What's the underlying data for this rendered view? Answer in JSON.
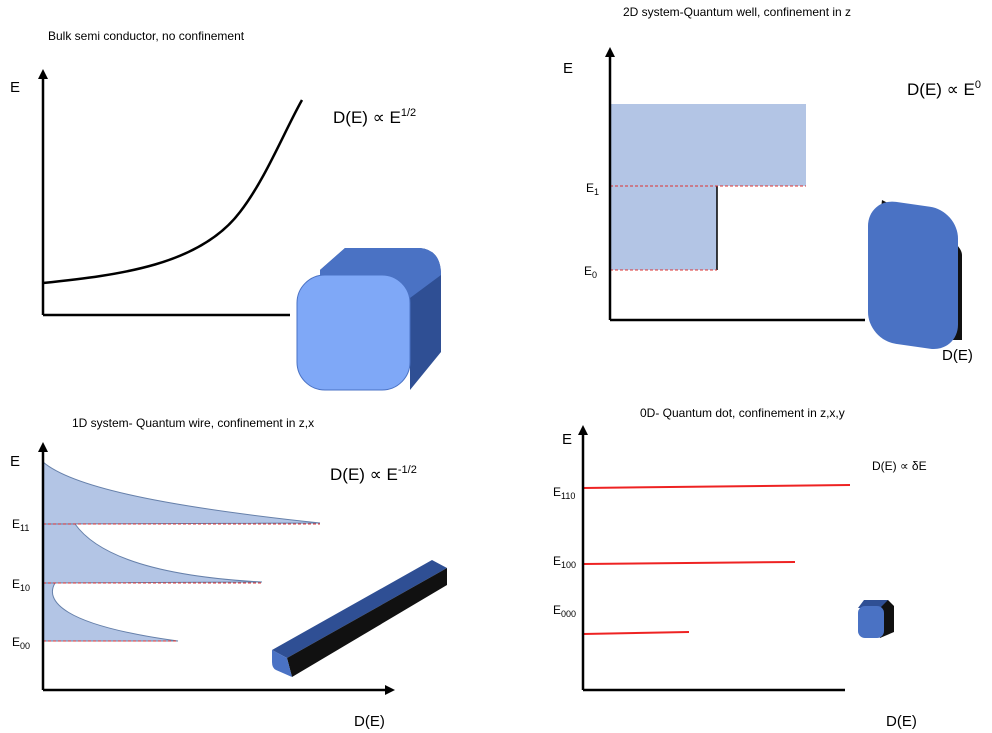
{
  "panels": [
    {
      "title": "Bulk semi conductor, no confinement",
      "y_axis": "E",
      "formula": {
        "text": "D(E) ∝ E",
        "sup": "1/2"
      }
    },
    {
      "title": "2D system-Quantum well, confinement in z",
      "y_axis": "E",
      "x_axis": "D(E)",
      "formula": {
        "text": "D(E) ∝ E",
        "sup": "0"
      },
      "levels": [
        {
          "text": "E",
          "sub": "1"
        },
        {
          "text": "E",
          "sub": "0"
        }
      ]
    },
    {
      "title": "1D system- Quantum wire, confinement in z,x",
      "y_axis": "E",
      "x_axis": "D(E)",
      "formula": {
        "text": "D(E) ∝ E",
        "sup": "-1/2"
      },
      "levels": [
        {
          "text": "E",
          "sub": "11"
        },
        {
          "text": "E",
          "sub": "10"
        },
        {
          "text": "E",
          "sub": "00"
        }
      ]
    },
    {
      "title": "0D- Quantum dot, confinement in z,x,y",
      "y_axis": "E",
      "x_axis": "D(E)",
      "formula": {
        "text": "D(E) ∝ δE"
      },
      "levels": [
        {
          "text": "E",
          "sub": "110"
        },
        {
          "text": "E",
          "sub": "100"
        },
        {
          "text": "E",
          "sub": "000"
        }
      ]
    }
  ]
}
